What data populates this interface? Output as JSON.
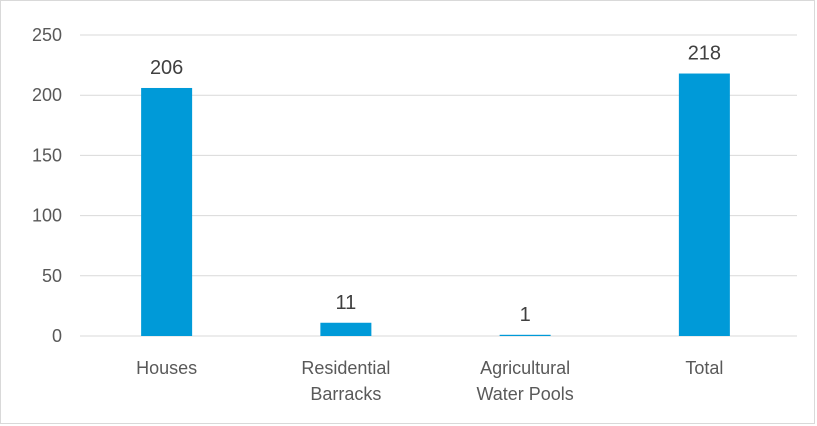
{
  "chart_data": {
    "type": "bar",
    "categories": [
      [
        "Houses"
      ],
      [
        "Residential",
        "Barracks"
      ],
      [
        "Agricultural",
        "Water Pools"
      ],
      [
        "Total"
      ]
    ],
    "values": [
      206,
      11,
      1,
      218
    ],
    "data_labels": [
      "206",
      "11",
      "1",
      "218"
    ],
    "yticks": [
      0,
      50,
      100,
      150,
      200,
      250
    ],
    "ylim": [
      0,
      250
    ],
    "grid": true,
    "legend": "none",
    "title": "",
    "xlabel": "",
    "ylabel": "",
    "bar_color": "#009ad8"
  }
}
